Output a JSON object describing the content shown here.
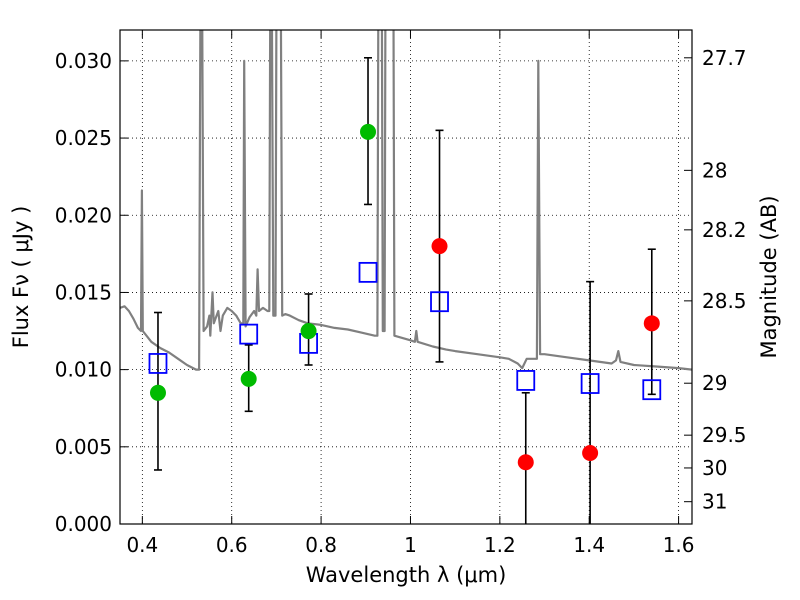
{
  "chart_data": {
    "type": "scatter",
    "xlabel": "Wavelength  λ (μm)",
    "ylabel": "Flux  Fν  ( μJy )",
    "y2label": "Magnitude (AB)",
    "xlim": [
      0.35,
      1.63
    ],
    "ylim": [
      0.0,
      0.032
    ],
    "grid": true,
    "x_ticks": [
      {
        "value": 0.4,
        "label": "0.4"
      },
      {
        "value": 0.6,
        "label": "0.6"
      },
      {
        "value": 0.8,
        "label": "0.8"
      },
      {
        "value": 1.0,
        "label": "1"
      },
      {
        "value": 1.2,
        "label": "1.2"
      },
      {
        "value": 1.4,
        "label": "1.4"
      },
      {
        "value": 1.6,
        "label": "1.6"
      }
    ],
    "y_ticks": [
      {
        "value": 0.0,
        "label": "0.000"
      },
      {
        "value": 0.005,
        "label": "0.005"
      },
      {
        "value": 0.01,
        "label": "0.010"
      },
      {
        "value": 0.015,
        "label": "0.015"
      },
      {
        "value": 0.02,
        "label": "0.020"
      },
      {
        "value": 0.025,
        "label": "0.025"
      },
      {
        "value": 0.03,
        "label": "0.030"
      }
    ],
    "y2_ticks": [
      {
        "value": 27.7,
        "label": "27.7"
      },
      {
        "value": 28.0,
        "label": "28"
      },
      {
        "value": 28.2,
        "label": "28.2"
      },
      {
        "value": 28.5,
        "label": "28.5"
      },
      {
        "value": 29.0,
        "label": "29"
      },
      {
        "value": 29.5,
        "label": "29.5"
      },
      {
        "value": 30.0,
        "label": "30"
      },
      {
        "value": 31.0,
        "label": "31"
      }
    ],
    "model_spectrum": {
      "color": "#808080",
      "points": [
        [
          0.35,
          0.014
        ],
        [
          0.36,
          0.0141
        ],
        [
          0.37,
          0.0138
        ],
        [
          0.38,
          0.0133
        ],
        [
          0.39,
          0.0127
        ],
        [
          0.397,
          0.0125
        ],
        [
          0.399,
          0.0216
        ],
        [
          0.401,
          0.0125
        ],
        [
          0.42,
          0.0118
        ],
        [
          0.44,
          0.0114
        ],
        [
          0.46,
          0.0111
        ],
        [
          0.48,
          0.0107
        ],
        [
          0.5,
          0.0103
        ],
        [
          0.52,
          0.01
        ],
        [
          0.527,
          0.01
        ],
        [
          0.53,
          0.033
        ],
        [
          0.534,
          0.033
        ],
        [
          0.537,
          0.0125
        ],
        [
          0.545,
          0.0128
        ],
        [
          0.55,
          0.0135
        ],
        [
          0.552,
          0.0122
        ],
        [
          0.557,
          0.015
        ],
        [
          0.56,
          0.013
        ],
        [
          0.57,
          0.0138
        ],
        [
          0.575,
          0.0125
        ],
        [
          0.58,
          0.0135
        ],
        [
          0.59,
          0.014
        ],
        [
          0.6,
          0.0138
        ],
        [
          0.61,
          0.0135
        ],
        [
          0.62,
          0.013
        ],
        [
          0.626,
          0.013
        ],
        [
          0.628,
          0.03
        ],
        [
          0.631,
          0.0128
        ],
        [
          0.64,
          0.0134
        ],
        [
          0.65,
          0.0138
        ],
        [
          0.655,
          0.0135
        ],
        [
          0.658,
          0.0165
        ],
        [
          0.661,
          0.0138
        ],
        [
          0.67,
          0.014
        ],
        [
          0.68,
          0.0138
        ],
        [
          0.684,
          0.0138
        ],
        [
          0.686,
          0.033
        ],
        [
          0.69,
          0.033
        ],
        [
          0.693,
          0.0135
        ],
        [
          0.698,
          0.0135
        ],
        [
          0.7,
          0.033
        ],
        [
          0.71,
          0.033
        ],
        [
          0.713,
          0.0135
        ],
        [
          0.72,
          0.0136
        ],
        [
          0.73,
          0.0135
        ],
        [
          0.75,
          0.0132
        ],
        [
          0.77,
          0.013
        ],
        [
          0.8,
          0.0129
        ],
        [
          0.83,
          0.0127
        ],
        [
          0.86,
          0.0126
        ],
        [
          0.89,
          0.0124
        ],
        [
          0.92,
          0.0122
        ],
        [
          0.926,
          0.0122
        ],
        [
          0.928,
          0.033
        ],
        [
          0.936,
          0.033
        ],
        [
          0.938,
          0.0125
        ],
        [
          0.942,
          0.0125
        ],
        [
          0.944,
          0.033
        ],
        [
          0.962,
          0.033
        ],
        [
          0.964,
          0.0122
        ],
        [
          1.0,
          0.0119
        ],
        [
          1.01,
          0.0118
        ],
        [
          1.013,
          0.0125
        ],
        [
          1.016,
          0.0118
        ],
        [
          1.05,
          0.0115
        ],
        [
          1.08,
          0.0113
        ],
        [
          1.1,
          0.0112
        ],
        [
          1.15,
          0.011
        ],
        [
          1.2,
          0.0108
        ],
        [
          1.22,
          0.0107
        ],
        [
          1.24,
          0.0104
        ],
        [
          1.25,
          0.0101
        ],
        [
          1.26,
          0.0107
        ],
        [
          1.27,
          0.0107
        ],
        [
          1.283,
          0.0107
        ],
        [
          1.286,
          0.03
        ],
        [
          1.29,
          0.011
        ],
        [
          1.3,
          0.011
        ],
        [
          1.35,
          0.0108
        ],
        [
          1.4,
          0.0106
        ],
        [
          1.45,
          0.0104
        ],
        [
          1.46,
          0.0106
        ],
        [
          1.465,
          0.0112
        ],
        [
          1.47,
          0.0105
        ],
        [
          1.5,
          0.0103
        ],
        [
          1.55,
          0.0102
        ],
        [
          1.6,
          0.0101
        ],
        [
          1.63,
          0.01
        ]
      ]
    },
    "model_points": {
      "marker": "square",
      "color": "#0000ff",
      "points": [
        [
          0.435,
          0.0104
        ],
        [
          0.638,
          0.0123
        ],
        [
          0.772,
          0.0117
        ],
        [
          0.905,
          0.0163
        ],
        [
          1.065,
          0.0144
        ],
        [
          1.258,
          0.0093
        ],
        [
          1.402,
          0.0091
        ],
        [
          1.54,
          0.0087
        ]
      ]
    },
    "observed": [
      {
        "x": 0.435,
        "y": 0.0085,
        "err_low": 0.0035,
        "err_high": 0.0137,
        "color": "#00bb00"
      },
      {
        "x": 0.638,
        "y": 0.0094,
        "err_low": 0.0073,
        "err_high": 0.0116,
        "color": "#00bb00"
      },
      {
        "x": 0.772,
        "y": 0.0125,
        "err_low": 0.0103,
        "err_high": 0.0149,
        "color": "#00bb00"
      },
      {
        "x": 0.905,
        "y": 0.0254,
        "err_low": 0.0207,
        "err_high": 0.0302,
        "color": "#00bb00"
      },
      {
        "x": 1.065,
        "y": 0.018,
        "err_low": 0.0105,
        "err_high": 0.0255,
        "color": "#ff0000"
      },
      {
        "x": 1.258,
        "y": 0.004,
        "err_low": 0.0,
        "err_high": 0.0085,
        "color": "#ff0000"
      },
      {
        "x": 1.402,
        "y": 0.0046,
        "err_low": 0.0,
        "err_high": 0.0157,
        "color": "#ff0000"
      },
      {
        "x": 1.54,
        "y": 0.013,
        "err_low": 0.0084,
        "err_high": 0.0178,
        "color": "#ff0000"
      }
    ]
  }
}
